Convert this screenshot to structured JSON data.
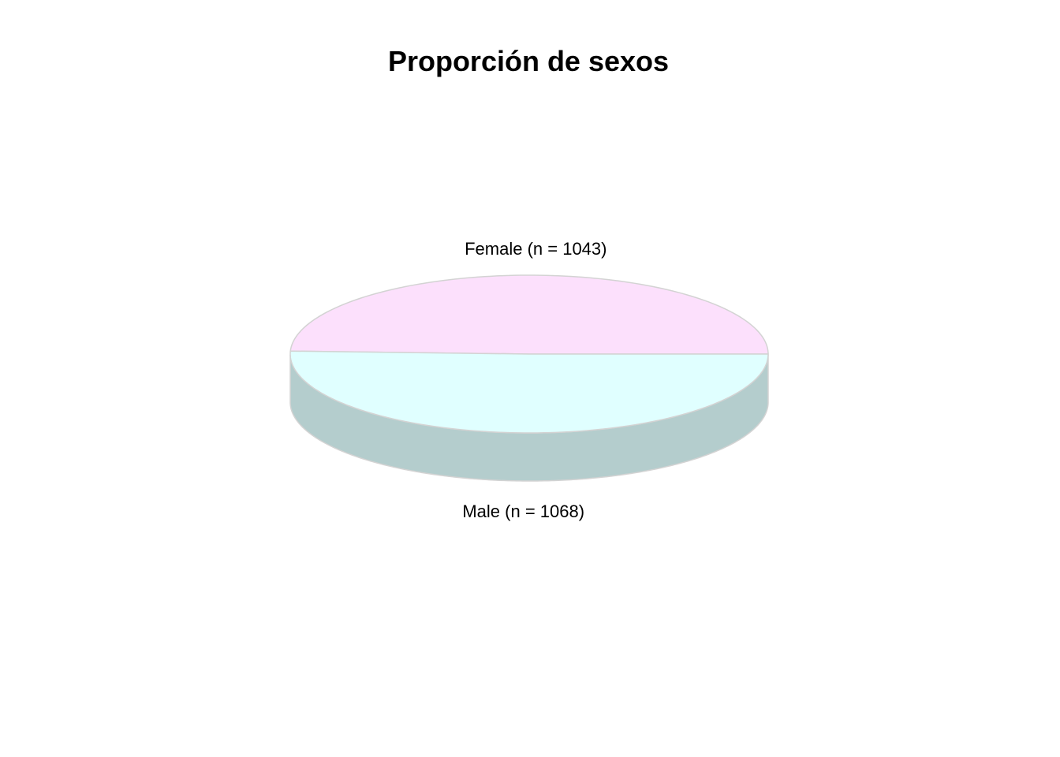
{
  "chart_data": {
    "type": "pie",
    "style": "3d",
    "title": "Proporción de sexos",
    "start_angle_deg": 0,
    "direction": "counterclockwise",
    "slices": [
      {
        "label": "Female (n = 1043)",
        "category": "Female",
        "value": 1043,
        "color": "#FCE0FC",
        "side_color": "#D7BED7"
      },
      {
        "label": "Male (n = 1068)",
        "category": "Male",
        "value": 1068,
        "color": "#E0FFFF",
        "side_color": "#B4CDCD"
      }
    ],
    "border_color": "#D3D3D3",
    "legend": false
  }
}
